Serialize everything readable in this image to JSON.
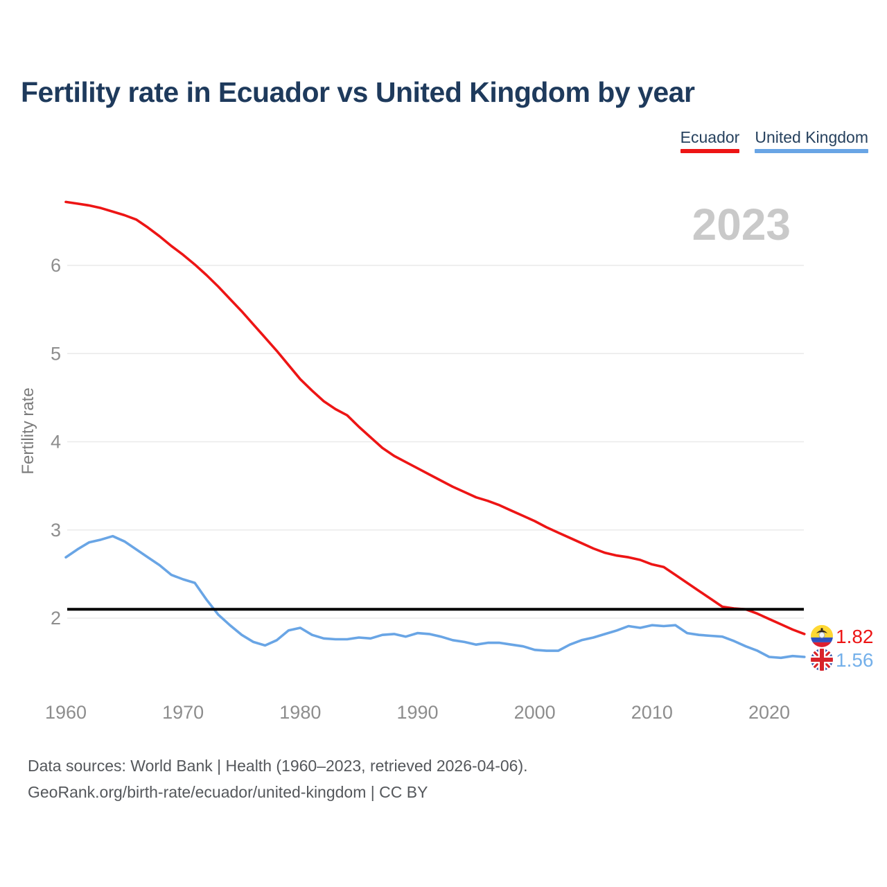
{
  "title": "Fertility rate in Ecuador vs United Kingdom by year",
  "watermark_year": "2023",
  "legend": {
    "items": [
      {
        "label": "Ecuador",
        "color": "#ed1515"
      },
      {
        "label": "United Kingdom",
        "color": "#69a5e5"
      }
    ]
  },
  "y_axis": {
    "title": "Fertility rate"
  },
  "end_labels": [
    {
      "series": "Ecuador",
      "value": "1.82",
      "flag_icon": "ecuador-flag-icon",
      "color": "#ed1515"
    },
    {
      "series": "United Kingdom",
      "value": "1.56",
      "flag_icon": "uk-flag-icon",
      "color": "#74b0ea"
    }
  ],
  "footer": {
    "line1": "Data sources: World Bank | Health (1960–2023, retrieved 2026-04-06).",
    "line2": "GeoRank.org/birth-rate/ecuador/united-kingdom | CC BY"
  },
  "colors": {
    "title_text": "#1e3a5c",
    "ecuador_line": "#ed1515",
    "uk_line": "#69a5e5",
    "reference_line": "#000000",
    "gridline": "#eaeaea",
    "tick_label": "#8d8d8d",
    "axis_title": "#7b7b7b",
    "watermark": "#c9c9c9",
    "footer_text": "#54575b",
    "ecuador_flag_yellow": "#ffd834",
    "ecuador_flag_blue": "#2e52c0",
    "ecuador_flag_red": "#dd2030",
    "uk_flag_blue": "#24429e",
    "uk_flag_red": "#d8232a"
  },
  "chart_data": {
    "type": "line",
    "title": "Fertility rate in Ecuador vs United Kingdom by year",
    "xlabel": "",
    "ylabel": "Fertility rate",
    "x_ticks": [
      1960,
      1970,
      1980,
      1990,
      2000,
      2010,
      2020
    ],
    "y_gridlines": [
      2,
      3,
      4,
      5,
      6
    ],
    "ylim": [
      1.1,
      7.0
    ],
    "x_range": [
      1960,
      2023
    ],
    "reference_line_value": 2.1,
    "legend_position": "top-right",
    "grid": "horizontal-only",
    "years": [
      1960,
      1961,
      1962,
      1963,
      1964,
      1965,
      1966,
      1967,
      1968,
      1969,
      1970,
      1971,
      1972,
      1973,
      1974,
      1975,
      1976,
      1977,
      1978,
      1979,
      1980,
      1981,
      1982,
      1983,
      1984,
      1985,
      1986,
      1987,
      1988,
      1989,
      1990,
      1991,
      1992,
      1993,
      1994,
      1995,
      1996,
      1997,
      1998,
      1999,
      2000,
      2001,
      2002,
      2003,
      2004,
      2005,
      2006,
      2007,
      2008,
      2009,
      2010,
      2011,
      2012,
      2013,
      2014,
      2015,
      2016,
      2017,
      2018,
      2019,
      2020,
      2021,
      2022,
      2023
    ],
    "series": [
      {
        "name": "Ecuador",
        "color": "#ed1515",
        "end_label": "1.82",
        "values": [
          6.72,
          6.7,
          6.68,
          6.65,
          6.61,
          6.57,
          6.52,
          6.43,
          6.33,
          6.22,
          6.12,
          6.01,
          5.89,
          5.76,
          5.62,
          5.48,
          5.33,
          5.18,
          5.03,
          4.87,
          4.71,
          4.58,
          4.46,
          4.37,
          4.3,
          4.17,
          4.05,
          3.93,
          3.84,
          3.77,
          3.7,
          3.63,
          3.56,
          3.49,
          3.43,
          3.37,
          3.33,
          3.28,
          3.22,
          3.16,
          3.1,
          3.03,
          2.97,
          2.91,
          2.85,
          2.79,
          2.74,
          2.71,
          2.69,
          2.66,
          2.61,
          2.58,
          2.49,
          2.4,
          2.31,
          2.22,
          2.13,
          2.11,
          2.1,
          2.05,
          1.99,
          1.93,
          1.87,
          1.82
        ]
      },
      {
        "name": "United Kingdom",
        "color": "#69a5e5",
        "end_label": "1.56",
        "values": [
          2.69,
          2.78,
          2.86,
          2.89,
          2.93,
          2.87,
          2.78,
          2.69,
          2.6,
          2.49,
          2.44,
          2.4,
          2.21,
          2.04,
          1.92,
          1.81,
          1.73,
          1.69,
          1.75,
          1.86,
          1.89,
          1.81,
          1.77,
          1.76,
          1.76,
          1.78,
          1.77,
          1.81,
          1.82,
          1.79,
          1.83,
          1.82,
          1.79,
          1.75,
          1.73,
          1.7,
          1.72,
          1.72,
          1.7,
          1.68,
          1.64,
          1.63,
          1.63,
          1.7,
          1.75,
          1.78,
          1.82,
          1.86,
          1.91,
          1.89,
          1.92,
          1.91,
          1.92,
          1.83,
          1.81,
          1.8,
          1.79,
          1.74,
          1.68,
          1.63,
          1.56,
          1.55,
          1.57,
          1.56
        ]
      }
    ]
  }
}
